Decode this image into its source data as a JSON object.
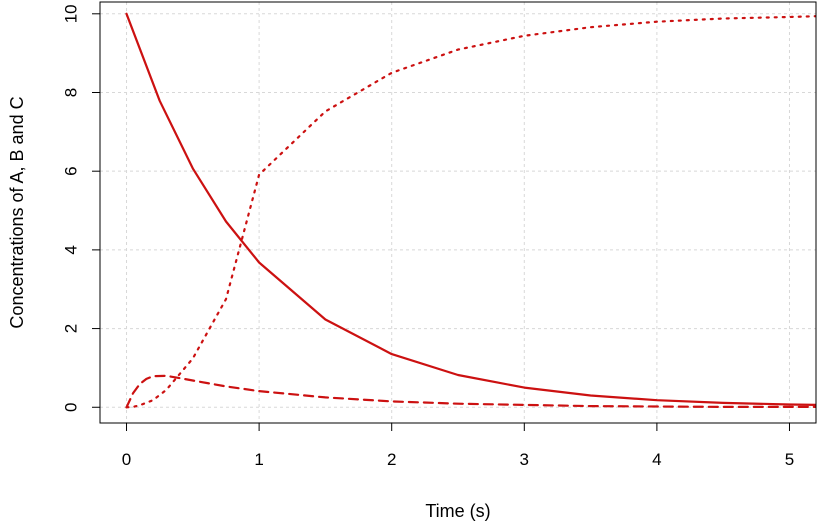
{
  "chart_data": {
    "type": "line",
    "title": "",
    "xlabel": "Time (s)",
    "ylabel": "Concentrations of A, B and C",
    "xlim": [
      -0.2,
      5.2
    ],
    "ylim": [
      -0.4,
      10.3
    ],
    "x_ticks": [
      0,
      1,
      2,
      3,
      4,
      5
    ],
    "y_ticks": [
      0,
      2,
      4,
      6,
      8,
      10
    ],
    "x_tick_labels": [
      "0",
      "1",
      "2",
      "3",
      "4",
      "5"
    ],
    "y_tick_labels": [
      "0",
      "2",
      "4",
      "6",
      "8",
      "10"
    ],
    "grid": true,
    "color": "#cc1111",
    "series": [
      {
        "style": "solid",
        "x": [
          0,
          0.25,
          0.5,
          0.75,
          1.0,
          1.5,
          2.0,
          2.5,
          3.0,
          3.5,
          4.0,
          4.5,
          5.0,
          5.2
        ],
        "y": [
          10.0,
          7.79,
          6.07,
          4.72,
          3.68,
          2.23,
          1.35,
          0.82,
          0.5,
          0.3,
          0.18,
          0.11,
          0.07,
          0.06
        ]
      },
      {
        "style": "dashed",
        "x": [
          0,
          0.05,
          0.1,
          0.15,
          0.2,
          0.3,
          0.4,
          0.5,
          0.75,
          1.0,
          1.5,
          2.0,
          2.5,
          3.0,
          3.5,
          4.0,
          4.5,
          5.0,
          5.2
        ],
        "y": [
          0.0,
          0.36,
          0.59,
          0.72,
          0.79,
          0.8,
          0.74,
          0.68,
          0.53,
          0.41,
          0.25,
          0.15,
          0.09,
          0.06,
          0.03,
          0.02,
          0.01,
          0.01,
          0.01
        ]
      },
      {
        "style": "dotted",
        "x": [
          0,
          0.05,
          0.1,
          0.2,
          0.3,
          0.5,
          0.75,
          1.0,
          1.5,
          2.0,
          2.5,
          3.0,
          3.5,
          4.0,
          4.5,
          5.0,
          5.2
        ],
        "y": [
          0.0,
          0.01,
          0.05,
          0.18,
          0.44,
          1.24,
          2.75,
          5.91,
          7.52,
          8.5,
          9.09,
          9.44,
          9.66,
          9.8,
          9.88,
          9.92,
          9.94
        ]
      }
    ]
  }
}
